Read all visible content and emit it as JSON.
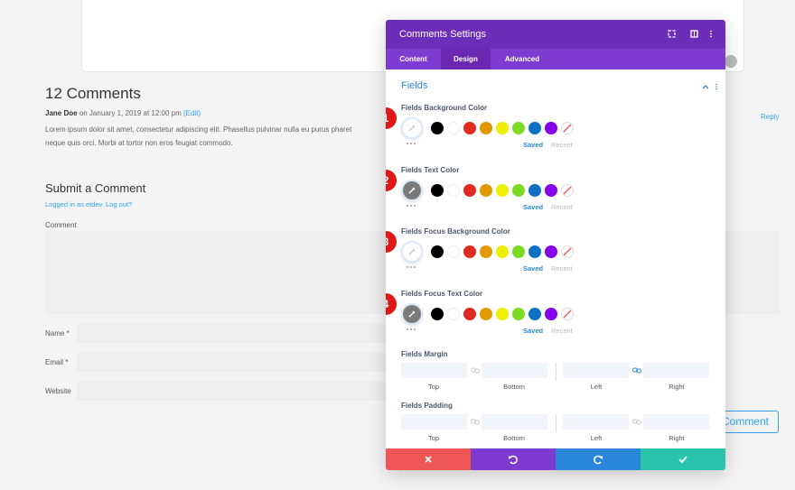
{
  "page": {
    "heading": "12 Comments",
    "comment": {
      "author": "Jane Doe",
      "date": "on January 1, 2019 at 12:00 pm",
      "edit": "(Edit)",
      "text_line1": "Lorem ipsum dolor sit amet, consectetur adipiscing elit. Phasellus pulvinar nulla eu purus pharet",
      "text_line2": "neque quis orci. Morbi at tortor non eros feugiat commodo.",
      "reply": "Reply"
    },
    "form": {
      "title": "Submit a Comment",
      "logged_in": "Logged in as etdev. Log out?",
      "comment_label": "Comment",
      "name_label": "Name *",
      "email_label": "Email *",
      "website_label": "Website",
      "submit": "Submit Comment"
    }
  },
  "panel": {
    "title": "Comments Settings",
    "tabs": [
      "Content",
      "Design",
      "Advanced"
    ],
    "active_tab": 1,
    "section": "Fields",
    "palette": [
      "#000000",
      "#ffffff",
      "#e02b20",
      "#e09900",
      "#edf000",
      "#7cda24",
      "#0c71c3",
      "#8300e9"
    ],
    "color_groups": [
      {
        "badge": "1",
        "label": "Fields Background Color",
        "picker": "#ffffff",
        "saved": "Saved",
        "recent": "Recent"
      },
      {
        "badge": "2",
        "label": "Fields Text Color",
        "picker": "#7a7a7a",
        "saved": "Saved",
        "recent": "Recent"
      },
      {
        "badge": "3",
        "label": "Fields Focus Background Color",
        "picker": "#ffffff",
        "saved": "Saved",
        "recent": "Recent"
      },
      {
        "badge": "4",
        "label": "Fields Focus Text Color",
        "picker": "#7a7a7a",
        "saved": "Saved",
        "recent": "Recent"
      }
    ],
    "spacing_groups": [
      {
        "label": "Fields Margin",
        "sides": [
          "Top",
          "Bottom",
          "Left",
          "Right"
        ]
      },
      {
        "label": "Fields Padding",
        "sides": [
          "Top",
          "Bottom",
          "Left",
          "Right"
        ]
      }
    ]
  }
}
